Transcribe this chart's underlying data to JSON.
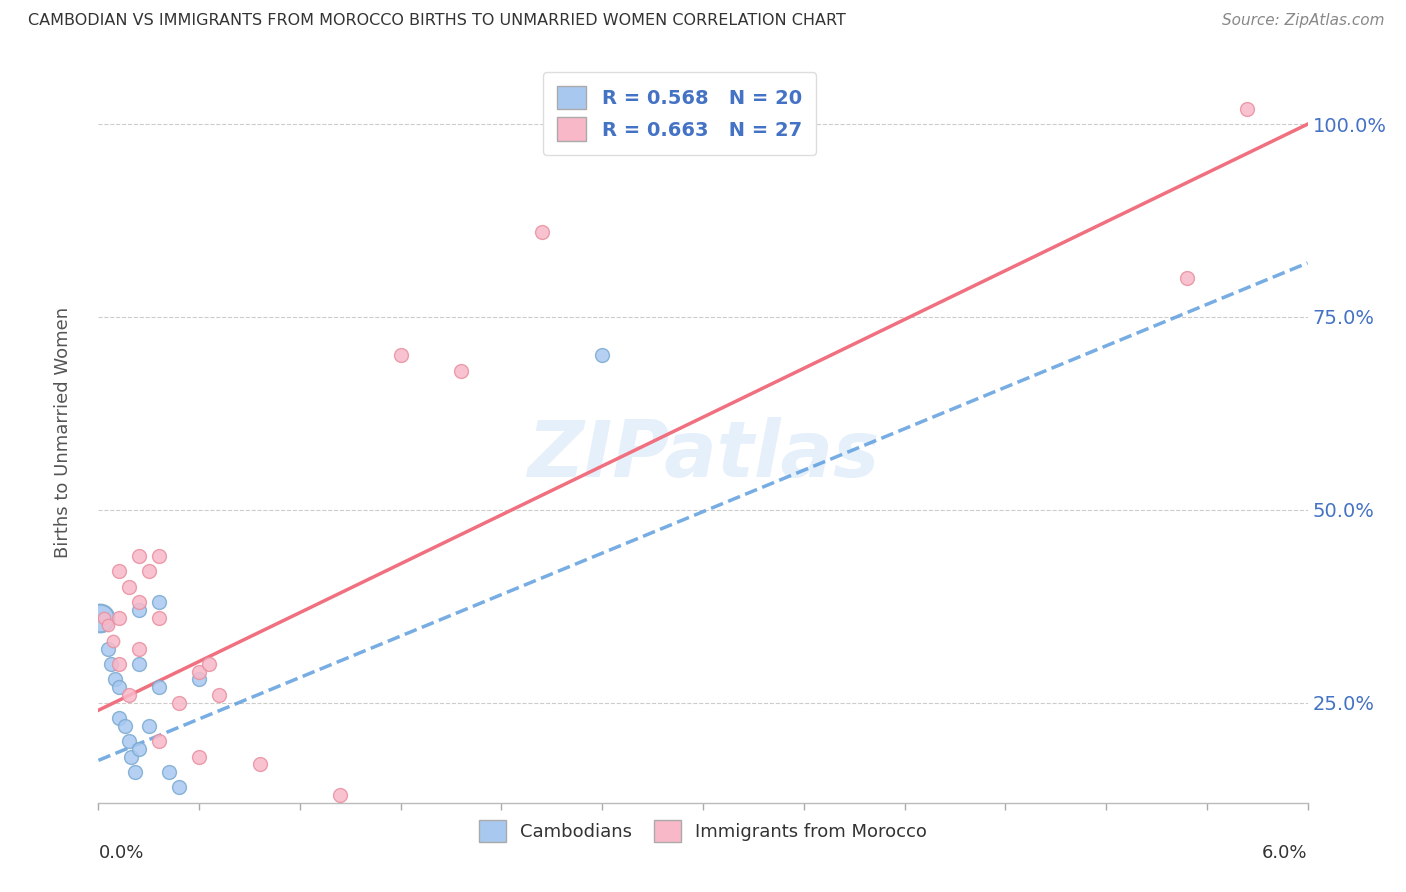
{
  "title": "CAMBODIAN VS IMMIGRANTS FROM MOROCCO BIRTHS TO UNMARRIED WOMEN CORRELATION CHART",
  "source": "Source: ZipAtlas.com",
  "ylabel": "Births to Unmarried Women",
  "ytick_values": [
    0.25,
    0.5,
    0.75,
    1.0
  ],
  "xlim": [
    0.0,
    0.06
  ],
  "ylim": [
    0.12,
    1.08
  ],
  "watermark": "ZIPatlas",
  "legend_cambodian_R": "0.568",
  "legend_cambodian_N": "20",
  "legend_morocco_R": "0.663",
  "legend_morocco_N": "27",
  "legend_label1": "Cambodians",
  "legend_label2": "Immigrants from Morocco",
  "blue_color": "#A8C8F0",
  "pink_color": "#F8B8C8",
  "blue_line_color": "#5599DD",
  "pink_line_color": "#F07080",
  "blue_dot_edge": "#7AAAD0",
  "pink_dot_edge": "#E890A0",
  "cambodian_x": [
    0.0001,
    0.0005,
    0.0006,
    0.0008,
    0.001,
    0.001,
    0.0013,
    0.0015,
    0.0016,
    0.0018,
    0.002,
    0.002,
    0.002,
    0.0025,
    0.003,
    0.003,
    0.0035,
    0.004,
    0.005,
    0.025
  ],
  "cambodian_y": [
    0.36,
    0.32,
    0.3,
    0.28,
    0.27,
    0.23,
    0.22,
    0.2,
    0.18,
    0.16,
    0.37,
    0.3,
    0.19,
    0.22,
    0.38,
    0.27,
    0.16,
    0.14,
    0.28,
    0.7
  ],
  "morocco_x": [
    0.0003,
    0.0005,
    0.0007,
    0.001,
    0.001,
    0.001,
    0.0015,
    0.0015,
    0.002,
    0.002,
    0.002,
    0.0025,
    0.003,
    0.003,
    0.003,
    0.004,
    0.005,
    0.005,
    0.0055,
    0.006,
    0.008,
    0.012,
    0.015,
    0.018,
    0.022,
    0.054,
    0.057
  ],
  "morocco_y": [
    0.36,
    0.35,
    0.33,
    0.42,
    0.36,
    0.3,
    0.4,
    0.26,
    0.44,
    0.38,
    0.32,
    0.42,
    0.44,
    0.36,
    0.2,
    0.25,
    0.29,
    0.18,
    0.3,
    0.26,
    0.17,
    0.13,
    0.7,
    0.68,
    0.86,
    0.8,
    1.02
  ],
  "cambodian_line_x": [
    0.0,
    0.06
  ],
  "cambodian_line_y": [
    0.175,
    0.82
  ],
  "morocco_line_x": [
    0.0,
    0.06
  ],
  "morocco_line_y": [
    0.24,
    1.0
  ]
}
